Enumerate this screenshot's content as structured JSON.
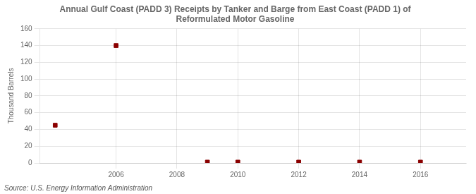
{
  "chart_data": {
    "type": "scatter",
    "title": "Annual Gulf Coast (PADD 3) Receipts by Tanker and Barge from East Coast (PADD 1) of\nReformulated Motor Gasoline",
    "ylabel": "Thousand Barrels",
    "annotations": [
      "Source: U.S. Energy Information Administration"
    ],
    "x": [
      2004,
      2006,
      2009,
      2010,
      2012,
      2014,
      2016
    ],
    "values": [
      45,
      140,
      1,
      1,
      1,
      1,
      1
    ],
    "color": "#8b0000",
    "marker": "square",
    "xlim": [
      2003.5,
      2017.5
    ],
    "xticks": [
      2006,
      2008,
      2010,
      2012,
      2014,
      2016
    ],
    "ylim": [
      0,
      160
    ],
    "yticks": [
      0,
      20,
      40,
      60,
      80,
      100,
      120,
      140,
      160
    ],
    "grid": true
  }
}
